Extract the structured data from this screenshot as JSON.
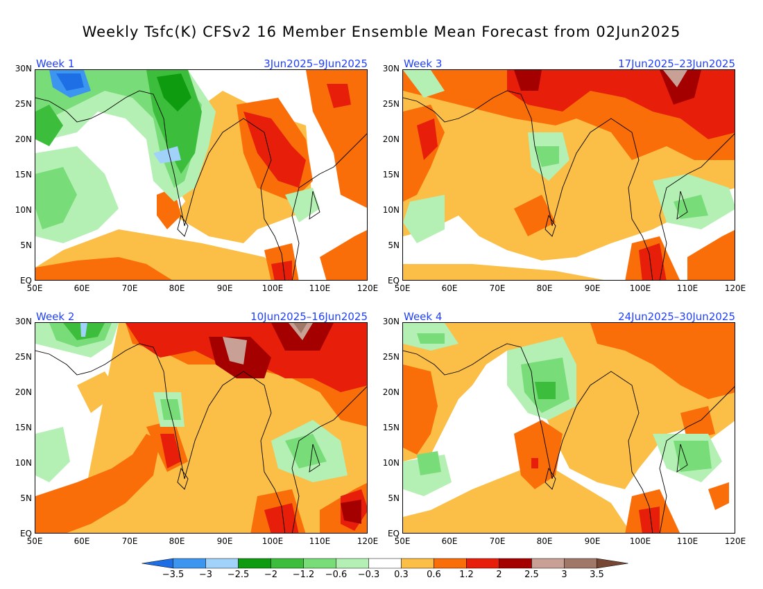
{
  "title": "Weekly Tsfc(K) CFSv2 16 Member Ensemble Mean Forecast from 02Jun2025",
  "axes": {
    "lat_labels": [
      "30N",
      "25N",
      "20N",
      "15N",
      "10N",
      "5N",
      "EQ"
    ],
    "lon_labels": [
      "50E",
      "60E",
      "70E",
      "80E",
      "90E",
      "100E",
      "110E",
      "120E"
    ],
    "lon_range": [
      50,
      120
    ],
    "lat_range": [
      0,
      30
    ]
  },
  "panels": [
    {
      "id": "week1",
      "week": "Week 1",
      "dates": "3Jun2025–9Jun2025"
    },
    {
      "id": "week3",
      "week": "Week 3",
      "dates": "17Jun2025–23Jun2025"
    },
    {
      "id": "week2",
      "week": "Week 2",
      "dates": "10Jun2025–16Jun2025"
    },
    {
      "id": "week4",
      "week": "Week 4",
      "dates": "24Jun2025–30Jun2025"
    }
  ],
  "colorbar": {
    "labels": [
      "-3.5",
      "-3",
      "-2.5",
      "-2",
      "-1.2",
      "-0.6",
      "-0.3",
      "0.3",
      "0.6",
      "1.2",
      "2",
      "2.5",
      "3",
      "3.5"
    ],
    "colors": [
      "#1e6ee6",
      "#3c96f0",
      "#a0d2fa",
      "#0f9b0f",
      "#3cbe3c",
      "#78dc78",
      "#b4f0b4",
      "#ffffff",
      "#fbbe46",
      "#fa6e0a",
      "#e61e0a",
      "#a50000",
      "#c8a096",
      "#a07868",
      "#784634"
    ]
  }
}
